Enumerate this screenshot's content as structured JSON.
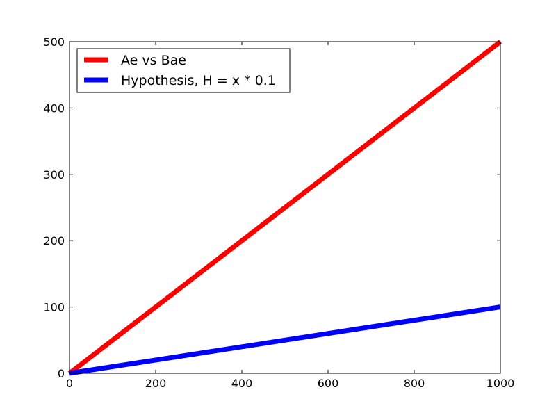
{
  "chart_data": {
    "type": "line",
    "title": "",
    "xlabel": "",
    "ylabel": "",
    "xlim": [
      0,
      1000
    ],
    "ylim": [
      0,
      500
    ],
    "x_ticks": [
      0,
      200,
      400,
      600,
      800,
      1000
    ],
    "y_ticks": [
      0,
      100,
      200,
      300,
      400,
      500
    ],
    "x_tick_labels": [
      "0",
      "200",
      "400",
      "600",
      "800",
      "1000"
    ],
    "y_tick_labels": [
      "0",
      "100",
      "200",
      "300",
      "400",
      "500"
    ],
    "grid": false,
    "legend_position": "top-left",
    "series": [
      {
        "name": "Ae vs Bae",
        "color": "#ff0000",
        "x": [
          0,
          1000
        ],
        "y": [
          0,
          500
        ]
      },
      {
        "name": "Hypothesis, H = x * 0.1",
        "color": "#0000ff",
        "x": [
          0,
          1000
        ],
        "y": [
          0,
          100
        ]
      }
    ]
  }
}
